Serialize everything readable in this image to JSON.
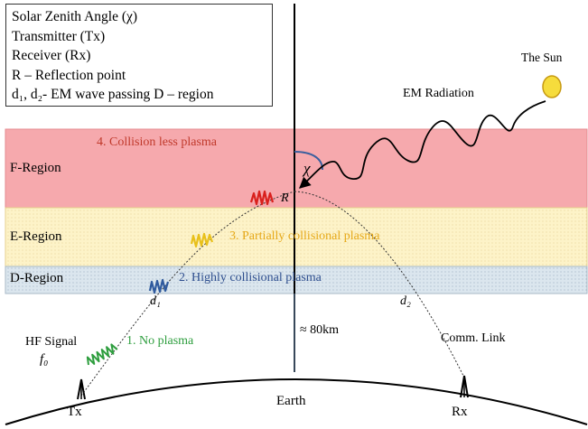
{
  "legend": {
    "lines": [
      "Solar Zenith Angle (χ)",
      "Transmitter (Tx)",
      "Receiver (Rx)",
      "R – Reflection point",
      "d₁, d₂- EM wave passing D – region"
    ]
  },
  "regions": {
    "f": {
      "label": "F-Region",
      "plasma": "4. Collision less plasma",
      "plasma_color": "#c0392b",
      "fill": "#f6a9ad"
    },
    "e": {
      "label": "E-Region",
      "plasma": "3. Partially collisional plasma",
      "plasma_color": "#e6a817",
      "fill": "#fdf3c8"
    },
    "d": {
      "label": "D-Region",
      "plasma": "2. Highly collisional plasma",
      "plasma_color": "#2f4f8f",
      "fill": "#dbe6ee"
    }
  },
  "labels": {
    "sun": "The Sun",
    "em_radiation": "EM Radiation",
    "chi": "χ",
    "reflection": "R",
    "d1": "d₁",
    "d2": "d₂",
    "hf_signal": "HF Signal",
    "f0": "f₀",
    "no_plasma": "1. No plasma",
    "no_plasma_color": "#2e9e3e",
    "altitude": "≈ 80km",
    "comm_link": "Comm. Link",
    "earth": "Earth",
    "tx": "Tx",
    "rx": "Rx"
  },
  "colors": {
    "sun": "#f6dc3c",
    "zenith_arc": "#3a5f9e",
    "wave_red": "#d9201c",
    "wave_yellow": "#e8c01a",
    "wave_blue": "#2f5a9e",
    "wave_green": "#2e9e3e"
  }
}
